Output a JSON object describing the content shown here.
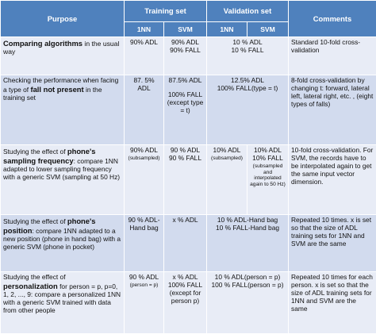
{
  "header": {
    "purpose": "Purpose",
    "training_set": "Training set",
    "validation_set": "Validation set",
    "comments": "Comments",
    "col_1nn": "1NN",
    "col_svm": "SVM"
  },
  "rows": [
    {
      "purpose_bold": "Comparing algorithms",
      "purpose_rest": " in the usual way",
      "train_1nn": "90% ADL",
      "train_svm_1": "90% ADL",
      "train_svm_2": "90% FALL",
      "val_1": "10 % ADL",
      "val_2": "10 % FALL",
      "comments": "Standard 10-fold cross-validation"
    },
    {
      "purpose_pre": "Checking the performance when facing a type of ",
      "purpose_bold": "fall not present",
      "purpose_post": " in the training set",
      "train_1nn": "87. 5% ADL",
      "train_svm_1": "87.5% ADL",
      "train_svm_2": "100% FALL",
      "train_svm_3": "(except type = t)",
      "val_1": "12.5% ADL",
      "val_2": "100% FALL(type = t)",
      "comments": "8-fold cross-validation by changing t: forward, lateral left, lateral right, etc. , (eight types of falls)"
    },
    {
      "purpose_pre": "Studying the effect of ",
      "purpose_bold": "phone's sampling frequency",
      "purpose_post": ": compare 1NN adapted to lower sampling frequency with a generic SVM (sampling at 50 Hz)",
      "train_1nn": "90% ADL",
      "train_1nn_note": "(subsampled)",
      "train_svm_1": "90 % ADL",
      "train_svm_2": "90 % FALL",
      "val_1nn": "10% ADL",
      "val_1nn_note": "(subsampled)",
      "val_svm_1": "10% ADL",
      "val_svm_2": "10% FALL",
      "val_svm_note": "(subsampled and interpolated again to 50 Hz)",
      "comments": "10-fold cross-validation. For SVM, the records have to be interpolated again to get the same input vector dimension."
    },
    {
      "purpose_pre": "Studying the effect of ",
      "purpose_bold": "phone's position",
      "purpose_post": ": compare 1NN adapted to a new position (phone in hand bag) with a generic SVM (phone in pocket)",
      "train_1nn": "90 % ADL-Hand bag",
      "train_svm": "x % ADL",
      "val_1": "10 % ADL-Hand bag",
      "val_2": "10 % FALL-Hand bag",
      "comments": "Repeated 10 times. x is set so that the size of ADL training sets for 1NN and SVM are the same"
    },
    {
      "purpose_pre": "Studying the effect of ",
      "purpose_bold": "personalization",
      "purpose_post": " for person = p, p=0, 1, 2, ..., 9: compare a personalized 1NN with a generic SVM trained with data from other people",
      "train_1nn": "90 % ADL",
      "train_1nn_note": "(person = p)",
      "train_svm_1": "x % ADL",
      "train_svm_2": "100% FALL",
      "train_svm_3": "(except for person p)",
      "val_1": "10 % ADL(person = p)",
      "val_2": "100 % FALL(person = p)",
      "comments": "Repeated 10 times for each person. x is set so that the size of ADL training sets for 1NN and SVM are the same"
    }
  ]
}
